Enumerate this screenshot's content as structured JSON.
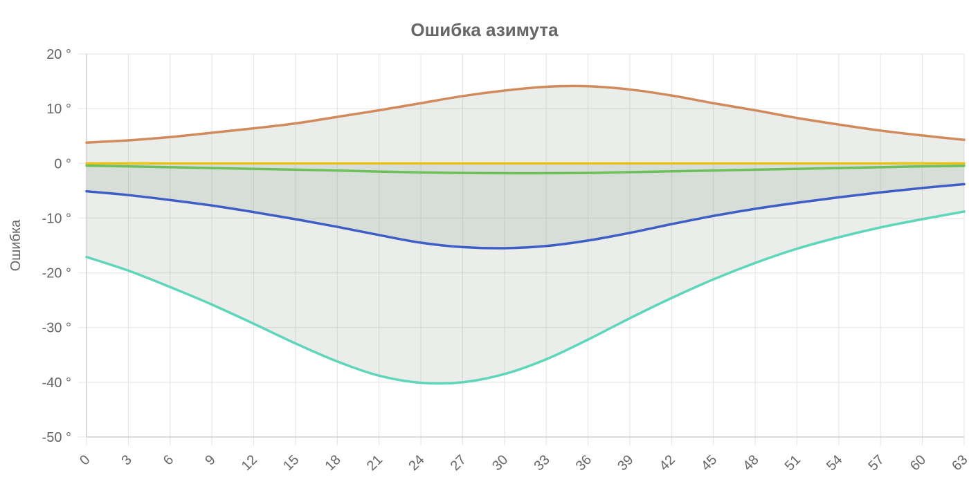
{
  "chart_data": {
    "type": "line",
    "title": "Ошибка азимута",
    "xlabel": "",
    "ylabel": "Ошибка",
    "x_ticks": [
      "0",
      "3",
      "6",
      "9",
      "12",
      "15",
      "18",
      "21",
      "24",
      "27",
      "30",
      "33",
      "36",
      "39",
      "42",
      "45",
      "48",
      "51",
      "54",
      "57",
      "60",
      "63"
    ],
    "y_ticks": [
      "20 °",
      "10 °",
      "0 °",
      "-10 °",
      "-20 °",
      "-30 °",
      "-40 °",
      "-50 °"
    ],
    "xlim": [
      0,
      63
    ],
    "ylim": [
      -50,
      20
    ],
    "grid": true,
    "legend": "none",
    "x": [
      0,
      3,
      6,
      9,
      12,
      15,
      18,
      21,
      24,
      27,
      30,
      33,
      36,
      39,
      42,
      45,
      48,
      51,
      54,
      57,
      60,
      63
    ],
    "series": [
      {
        "color": "#d08a5c",
        "fill": "envelope",
        "values": [
          3.8,
          4.2,
          4.8,
          5.6,
          6.4,
          7.3,
          8.5,
          9.7,
          11.0,
          12.3,
          13.3,
          14.0,
          14.1,
          13.5,
          12.4,
          11.0,
          9.7,
          8.3,
          7.1,
          6.0,
          5.1,
          4.3
        ]
      },
      {
        "color": "#e5c21c",
        "values": [
          0,
          0,
          0,
          0,
          0,
          0,
          0,
          0,
          0,
          0,
          0,
          0,
          0,
          0,
          0,
          0,
          0,
          0,
          0,
          0,
          0,
          0
        ]
      },
      {
        "color": "#6dbf5a",
        "values": [
          -0.4,
          -0.55,
          -0.7,
          -0.85,
          -1.0,
          -1.15,
          -1.3,
          -1.5,
          -1.65,
          -1.75,
          -1.8,
          -1.8,
          -1.75,
          -1.6,
          -1.45,
          -1.3,
          -1.15,
          -1.0,
          -0.85,
          -0.7,
          -0.55,
          -0.45
        ]
      },
      {
        "color": "#3e5ec6",
        "fill": "to-zero",
        "values": [
          -5.1,
          -5.8,
          -6.7,
          -7.7,
          -8.9,
          -10.2,
          -11.6,
          -13.1,
          -14.5,
          -15.3,
          -15.5,
          -15.1,
          -14.1,
          -12.7,
          -11.1,
          -9.6,
          -8.3,
          -7.2,
          -6.2,
          -5.3,
          -4.5,
          -3.8
        ]
      },
      {
        "color": "#5dd6b9",
        "values": [
          -17.1,
          -19.6,
          -22.6,
          -25.8,
          -29.3,
          -32.9,
          -36.2,
          -38.8,
          -40.1,
          -40.0,
          -38.5,
          -35.8,
          -32.2,
          -28.3,
          -24.6,
          -21.2,
          -18.2,
          -15.6,
          -13.5,
          -11.7,
          -10.2,
          -8.8
        ]
      }
    ]
  }
}
